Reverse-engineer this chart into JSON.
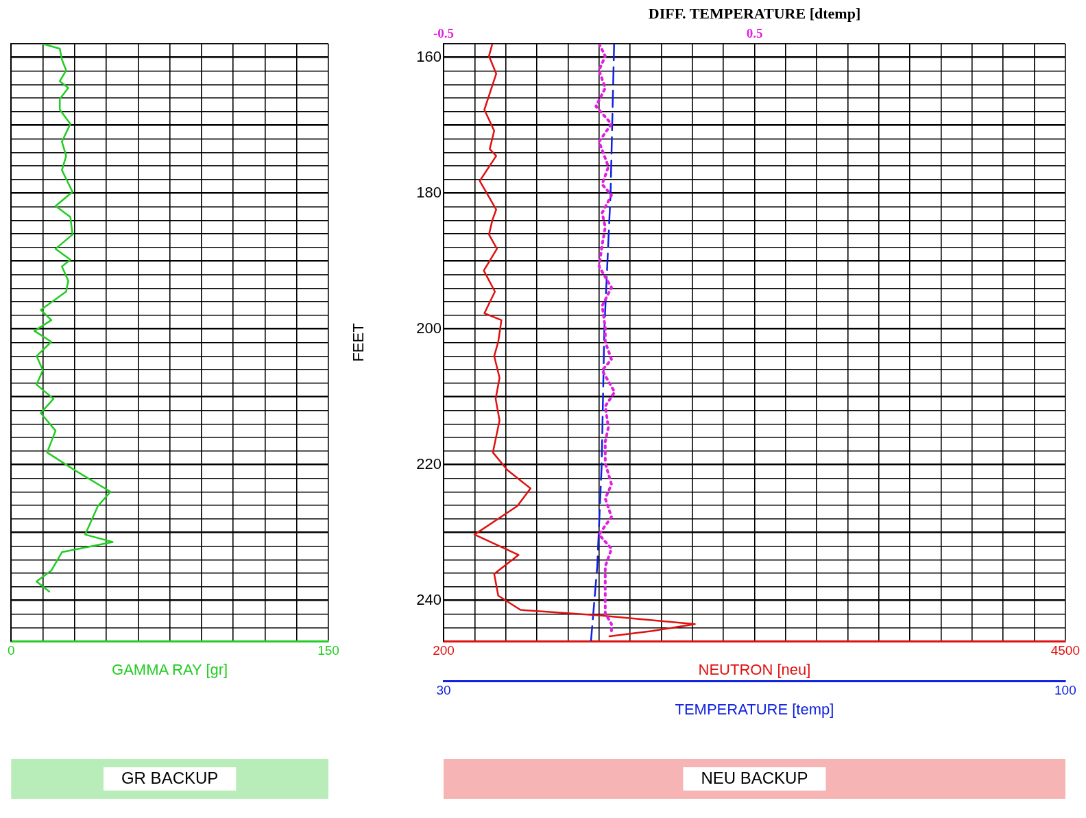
{
  "chart_data": [
    {
      "type": "line",
      "xlabel": "GAMMA RAY [gr]",
      "annotations": [
        "GR BACKUP"
      ],
      "xlim": [
        0,
        150
      ],
      "xticks": [
        0,
        {
          "value": 15,
          "label": null
        },
        {
          "value": 30,
          "label": null
        },
        {
          "value": 45,
          "label": null
        },
        {
          "value": 60,
          "label": null
        },
        {
          "value": 75,
          "label": null
        },
        {
          "value": 90,
          "label": null
        },
        {
          "value": 105,
          "label": null
        },
        {
          "value": 120,
          "label": null
        },
        {
          "value": 135,
          "label": null
        },
        150
      ],
      "ylim": [
        246,
        158
      ],
      "yticks": [
        {
          "value": 158,
          "label": null
        },
        160,
        {
          "value": 162,
          "label": null
        },
        {
          "value": 164,
          "label": null
        },
        {
          "value": 166,
          "label": null
        },
        {
          "value": 168,
          "label": null
        },
        {
          "value": 170,
          "label": null
        },
        {
          "value": 172,
          "label": null
        },
        {
          "value": 174,
          "label": null
        },
        {
          "value": 176,
          "label": null
        },
        {
          "value": 178,
          "label": null
        },
        180,
        {
          "value": 182,
          "label": null
        },
        {
          "value": 184,
          "label": null
        },
        {
          "value": 186,
          "label": null
        },
        {
          "value": 188,
          "label": null
        },
        {
          "value": 190,
          "label": null
        },
        {
          "value": 192,
          "label": null
        },
        {
          "value": 194,
          "label": null
        },
        {
          "value": 196,
          "label": null
        },
        {
          "value": 198,
          "label": null
        },
        200,
        {
          "value": 202,
          "label": null
        },
        {
          "value": 204,
          "label": null
        },
        {
          "value": 206,
          "label": null
        },
        {
          "value": 208,
          "label": null
        },
        {
          "value": 210,
          "label": null
        },
        {
          "value": 212,
          "label": null
        },
        {
          "value": 214,
          "label": null
        },
        {
          "value": 216,
          "label": null
        },
        {
          "value": 218,
          "label": null
        },
        220,
        {
          "value": 222,
          "label": null
        },
        {
          "value": 224,
          "label": null
        },
        {
          "value": 226,
          "label": null
        },
        {
          "value": 228,
          "label": null
        },
        {
          "value": 230,
          "label": null
        },
        {
          "value": 232,
          "label": null
        },
        {
          "value": 234,
          "label": null
        },
        {
          "value": 236,
          "label": null
        },
        {
          "value": 238,
          "label": null
        },
        240,
        {
          "value": 242,
          "label": null
        },
        {
          "value": 244,
          "label": null
        },
        {
          "value": 246,
          "label": null
        }
      ],
      "tick_labels": "x",
      "grid": true,
      "legend": false,
      "series": [
        {
          "color": "#22cc22",
          "x": [
            15,
            23,
            24,
            26,
            23,
            27,
            23,
            23,
            28,
            24,
            26,
            24,
            29,
            21,
            28,
            29,
            21,
            28,
            24,
            27,
            26,
            14,
            19,
            11,
            19,
            12,
            15,
            12,
            20,
            14,
            21,
            17,
            30,
            47,
            41,
            35,
            48,
            24,
            19,
            12,
            18
          ],
          "values": [
            158,
            158.7,
            160.3,
            161.9,
            163.5,
            164.5,
            166.1,
            167.7,
            169.8,
            172.4,
            174.5,
            176.6,
            179.8,
            181.9,
            183.5,
            186.1,
            188.2,
            189.8,
            190.8,
            192.9,
            194.5,
            197.2,
            198.7,
            200.3,
            201.9,
            204,
            206.1,
            208.2,
            210.3,
            212.4,
            215,
            218.2,
            220.8,
            224,
            226.1,
            230.3,
            231.4,
            232.9,
            235.6,
            237.2,
            238.7
          ]
        }
      ]
    },
    {
      "type": "line",
      "xlabel": "NEUTRON [neu]",
      "x2label": "TEMPERATURE [temp]",
      "ylabel": "FEET",
      "annotations": [
        "NEU BACKUP"
      ],
      "xlim": [
        200,
        4500
      ],
      "xticks": [
        200,
        {
          "value": 415,
          "label": null
        },
        {
          "value": 630,
          "label": null
        },
        {
          "value": 845,
          "label": null
        },
        {
          "value": 1060,
          "label": null
        },
        {
          "value": 1275,
          "label": null
        },
        {
          "value": 1490,
          "label": null
        },
        {
          "value": 1705,
          "label": null
        },
        {
          "value": 1920,
          "label": null
        },
        {
          "value": 2135,
          "label": null
        },
        {
          "value": 2350,
          "label": null
        },
        {
          "value": 2565,
          "label": null
        },
        {
          "value": 2780,
          "label": null
        },
        {
          "value": 2995,
          "label": null
        },
        {
          "value": 3210,
          "label": null
        },
        {
          "value": 3425,
          "label": null
        },
        {
          "value": 3640,
          "label": null
        },
        {
          "value": 3855,
          "label": null
        },
        {
          "value": 4070,
          "label": null
        },
        {
          "value": 4285,
          "label": null
        },
        4500
      ],
      "x2lim": [
        30,
        100
      ],
      "x2ticks": [
        30,
        100
      ],
      "ylim": [
        246,
        158
      ],
      "yticks": [
        {
          "value": 158,
          "label": null
        },
        160,
        {
          "value": 162,
          "label": null
        },
        {
          "value": 164,
          "label": null
        },
        {
          "value": 166,
          "label": null
        },
        {
          "value": 168,
          "label": null
        },
        {
          "value": 170,
          "label": null
        },
        {
          "value": 172,
          "label": null
        },
        {
          "value": 174,
          "label": null
        },
        {
          "value": 176,
          "label": null
        },
        {
          "value": 178,
          "label": null
        },
        180,
        {
          "value": 182,
          "label": null
        },
        {
          "value": 184,
          "label": null
        },
        {
          "value": 186,
          "label": null
        },
        {
          "value": 188,
          "label": null
        },
        {
          "value": 190,
          "label": null
        },
        {
          "value": 192,
          "label": null
        },
        {
          "value": 194,
          "label": null
        },
        {
          "value": 196,
          "label": null
        },
        {
          "value": 198,
          "label": null
        },
        200,
        {
          "value": 202,
          "label": null
        },
        {
          "value": 204,
          "label": null
        },
        {
          "value": 206,
          "label": null
        },
        {
          "value": 208,
          "label": null
        },
        {
          "value": 210,
          "label": null
        },
        {
          "value": 212,
          "label": null
        },
        {
          "value": 214,
          "label": null
        },
        {
          "value": 216,
          "label": null
        },
        {
          "value": 218,
          "label": null
        },
        220,
        {
          "value": 222,
          "label": null
        },
        {
          "value": 224,
          "label": null
        },
        {
          "value": 226,
          "label": null
        },
        {
          "value": 228,
          "label": null
        },
        {
          "value": 230,
          "label": null
        },
        {
          "value": 232,
          "label": null
        },
        {
          "value": 234,
          "label": null
        },
        {
          "value": 236,
          "label": null
        },
        {
          "value": 238,
          "label": null
        },
        240,
        {
          "value": 242,
          "label": null
        },
        {
          "value": 244,
          "label": null
        },
        {
          "value": 246,
          "label": null
        }
      ],
      "grid": true,
      "legend": false,
      "series": [
        {
          "color": "#e01010",
          "line_style": "solid",
          "x": [
            537,
            514,
            564,
            482,
            550,
            519,
            564,
            450,
            564,
            537,
            514,
            569,
            478,
            555,
            482,
            600,
            578,
            550,
            587,
            560,
            587,
            541,
            641,
            801,
            710,
            414,
            719,
            550,
            578,
            732,
            1278,
            1938,
            1642,
            1347
          ],
          "values": [
            158,
            159.8,
            162.4,
            167.7,
            170.8,
            173.5,
            174.5,
            178.2,
            182.4,
            184,
            186.1,
            188.2,
            191.4,
            194.5,
            197.7,
            198.7,
            201.9,
            204,
            207.2,
            210.3,
            213.5,
            218.2,
            220.8,
            223.5,
            226.1,
            230.3,
            233.3,
            236.1,
            239.3,
            241.4,
            242.2,
            243.5,
            244.5,
            245.3
          ]
        },
        {
          "color": "#1020e0",
          "axis": "x2",
          "line_style": "dashed",
          "x": [
            49.2,
            48.8,
            48.1,
            47.8,
            47.3,
            46.6
          ],
          "values": [
            158,
            180,
            200,
            220,
            235,
            245.9
          ]
        }
      ]
    },
    {
      "type": "line",
      "xlabel": "DIFF. TEMPERATURE [dtemp]",
      "xlim": [
        -0.5,
        1.5
      ],
      "xticks": [
        -0.5,
        0.5
      ],
      "ylim": [
        246,
        158
      ],
      "tick_labels": "x",
      "legend": false,
      "series": [
        {
          "color": "#e020e0",
          "line_style": "dotted",
          "x": [
            0,
            0.02,
            0,
            0.02,
            -0.01,
            0.04,
            0,
            0.03,
            0.01,
            0.04,
            0.01,
            0.02,
            0.01,
            0,
            0.04,
            0.01,
            0.02,
            0.02,
            0.04,
            0.01,
            0.05,
            0.02,
            0.03,
            0.02,
            0.02,
            0.04,
            0.02,
            0.04,
            0,
            0.04,
            0.02,
            0.02,
            0.02,
            0.02,
            0.04,
            0.04
          ],
          "values": [
            158,
            159.8,
            161.9,
            164.5,
            167.2,
            169.8,
            172.4,
            176.1,
            178.7,
            180.3,
            182.9,
            185,
            187.6,
            190.8,
            193.9,
            196.6,
            199.8,
            201.9,
            204.5,
            206.1,
            209.3,
            211.4,
            214.5,
            216.6,
            219.8,
            222.9,
            225,
            227.7,
            230.3,
            232.4,
            235,
            237.7,
            240.8,
            241.9,
            243.5,
            244.9
          ]
        }
      ]
    }
  ]
}
